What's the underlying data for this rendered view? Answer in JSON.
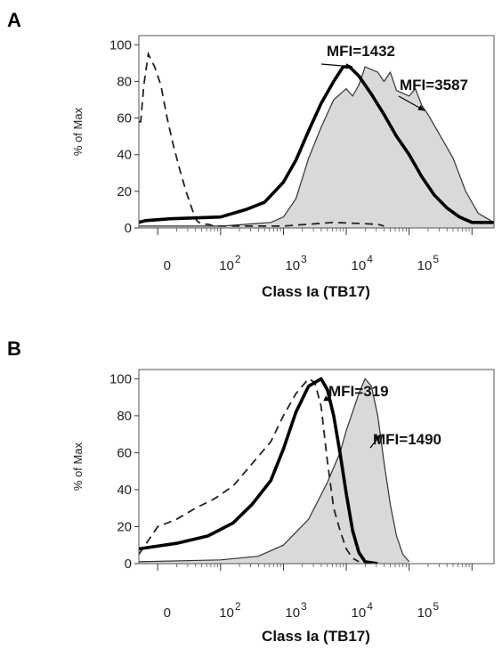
{
  "chart_data": [
    {
      "type": "line",
      "panel_label": "A",
      "xlabel": "Class Ia (TB17)",
      "ylabel": "% of Max",
      "xscale": "biexponential",
      "xlim": [
        -0.3,
        5.35
      ],
      "ylim": [
        0,
        105
      ],
      "ytick_labels": [
        "0",
        "20",
        "40",
        "60",
        "80",
        "100"
      ],
      "xtick_labels": [
        "0",
        "10",
        "10",
        "10",
        "10"
      ],
      "xtick_exponents": [
        "",
        "2",
        "3",
        "4",
        "5"
      ],
      "series": [
        {
          "style": "dashed",
          "x": [
            -0.3,
            -0.27,
            -0.22,
            -0.15,
            -0.05,
            0.05,
            0.15,
            0.25,
            0.35,
            0.45,
            0.55,
            0.62,
            0.7,
            0.8,
            0.9,
            1.2,
            2.0,
            2.8,
            3.5,
            3.6
          ],
          "y": [
            58,
            58,
            78,
            95,
            88,
            78,
            60,
            45,
            32,
            20,
            10,
            4,
            2,
            2,
            1,
            1,
            1,
            3,
            2,
            1
          ]
        },
        {
          "style": "thick",
          "x": [
            -0.3,
            -0.2,
            0.2,
            1.0,
            1.4,
            1.7,
            2.0,
            2.2,
            2.4,
            2.6,
            2.8,
            2.95,
            3.05,
            3.2,
            3.4,
            3.6,
            3.8,
            4.0,
            4.2,
            4.4,
            4.6,
            4.8,
            5.0,
            5.2,
            5.35
          ],
          "y": [
            3,
            4,
            5,
            6,
            10,
            14,
            25,
            37,
            53,
            68,
            80,
            88,
            88,
            83,
            73,
            62,
            50,
            40,
            28,
            18,
            11,
            6,
            3,
            3,
            3
          ]
        },
        {
          "style": "thin",
          "x": [
            -0.3,
            0.5,
            1.0,
            1.4,
            1.8,
            2.0,
            2.2,
            2.4,
            2.6,
            2.8,
            3.0,
            3.1,
            3.2,
            3.3,
            3.5,
            3.6,
            3.7,
            3.8,
            4.0,
            4.1,
            4.2,
            4.3,
            4.5,
            4.7,
            4.9,
            5.1,
            5.35
          ],
          "y": [
            1,
            1,
            1,
            2,
            3,
            6,
            16,
            38,
            55,
            70,
            76,
            72,
            78,
            88,
            85,
            80,
            85,
            75,
            72,
            76,
            67,
            62,
            50,
            38,
            20,
            8,
            3
          ]
        },
        {
          "style": "filled",
          "x": [
            -0.3,
            0.5,
            1.0,
            1.4,
            1.8,
            2.0,
            2.2,
            2.4,
            2.6,
            2.8,
            3.0,
            3.1,
            3.2,
            3.3,
            3.5,
            3.6,
            3.7,
            3.8,
            4.0,
            4.1,
            4.2,
            4.3,
            4.5,
            4.7,
            4.9,
            5.1,
            5.35
          ],
          "y": [
            1,
            1,
            1,
            2,
            3,
            6,
            16,
            38,
            55,
            70,
            76,
            72,
            78,
            88,
            85,
            80,
            85,
            75,
            72,
            76,
            67,
            62,
            50,
            38,
            20,
            8,
            3
          ]
        }
      ],
      "annotations": [
        {
          "text": "MFI=1432",
          "target_x": 3.1,
          "target_y": 88
        },
        {
          "text": "MFI=3587",
          "target_x": 4.25,
          "target_y": 64
        }
      ]
    },
    {
      "type": "line",
      "panel_label": "B",
      "xlabel": "Class Ia (TB17)",
      "ylabel": "% of Max",
      "xscale": "biexponential",
      "xlim": [
        -0.3,
        5.35
      ],
      "ylim": [
        0,
        105
      ],
      "ytick_labels": [
        "0",
        "20",
        "40",
        "60",
        "80",
        "100"
      ],
      "xtick_labels": [
        "0",
        "10",
        "10",
        "10",
        "10"
      ],
      "xtick_exponents": [
        "",
        "2",
        "3",
        "4",
        "5"
      ],
      "series": [
        {
          "style": "dashed",
          "x": [
            -0.3,
            0.0,
            0.3,
            0.6,
            0.9,
            1.2,
            1.5,
            1.8,
            2.0,
            2.2,
            2.4,
            2.5,
            2.6,
            2.7,
            2.8,
            2.9,
            3.0,
            3.1,
            3.2
          ],
          "y": [
            5,
            20,
            24,
            30,
            35,
            42,
            54,
            66,
            80,
            92,
            100,
            98,
            85,
            55,
            30,
            18,
            8,
            3,
            1
          ]
        },
        {
          "style": "thick",
          "x": [
            -0.3,
            0.3,
            0.8,
            1.2,
            1.5,
            1.8,
            2.0,
            2.2,
            2.4,
            2.6,
            2.7,
            2.8,
            2.9,
            3.0,
            3.1,
            3.2,
            3.3,
            3.5
          ],
          "y": [
            8,
            11,
            15,
            22,
            32,
            45,
            62,
            82,
            96,
            100,
            94,
            80,
            60,
            38,
            18,
            6,
            1,
            0
          ]
        },
        {
          "style": "thin",
          "x": [
            -0.3,
            1.0,
            1.6,
            2.0,
            2.4,
            2.7,
            2.9,
            3.0,
            3.1,
            3.2,
            3.3,
            3.4,
            3.5,
            3.6,
            3.7,
            3.8,
            3.9,
            4.0
          ],
          "y": [
            1,
            2,
            4,
            10,
            24,
            44,
            60,
            72,
            82,
            92,
            100,
            96,
            80,
            55,
            32,
            15,
            5,
            1
          ]
        },
        {
          "style": "filled",
          "x": [
            -0.3,
            1.0,
            1.6,
            2.0,
            2.4,
            2.7,
            2.9,
            3.0,
            3.1,
            3.2,
            3.3,
            3.4,
            3.5,
            3.6,
            3.7,
            3.8,
            3.9,
            4.0
          ],
          "y": [
            1,
            2,
            4,
            10,
            24,
            44,
            60,
            72,
            82,
            92,
            100,
            96,
            80,
            55,
            32,
            15,
            5,
            1
          ]
        }
      ],
      "annotations": [
        {
          "text": "MFI=319",
          "target_x": 2.75,
          "target_y": 88
        },
        {
          "text": "MFI=1490",
          "target_x": 3.55,
          "target_y": 70
        }
      ]
    }
  ]
}
